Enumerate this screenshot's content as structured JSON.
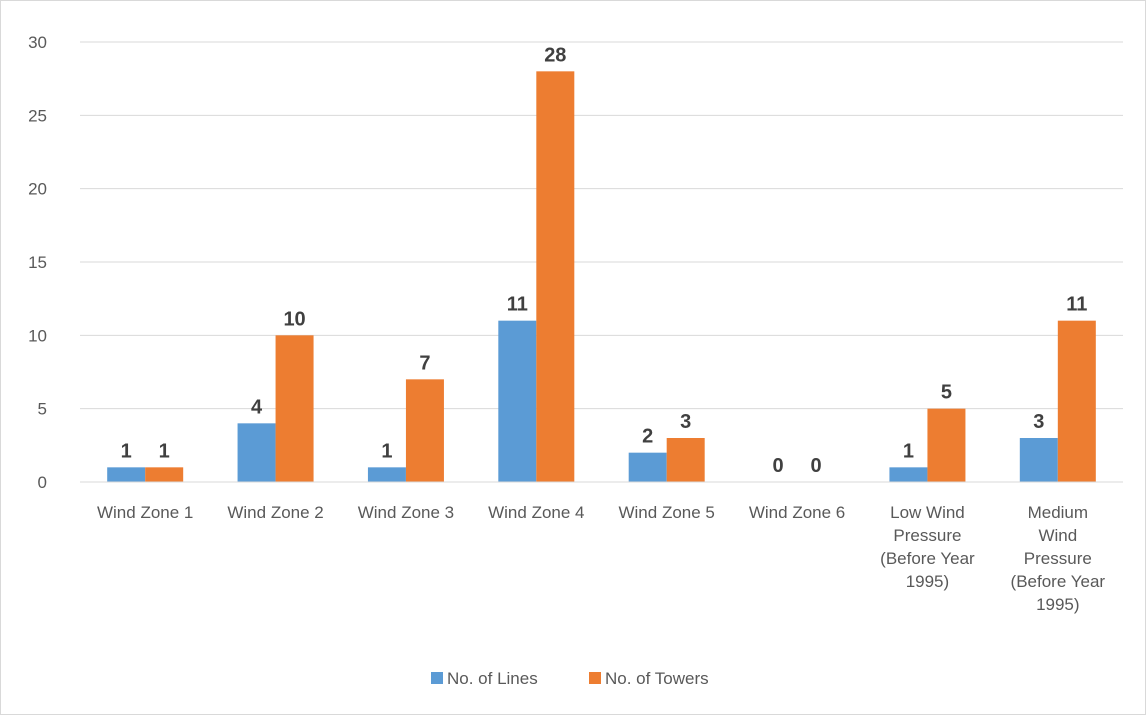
{
  "chart_data": {
    "type": "bar",
    "title": "",
    "xlabel": "",
    "ylabel": "",
    "ylim": [
      0,
      30
    ],
    "yticks": [
      0,
      5,
      10,
      15,
      20,
      25,
      30
    ],
    "grid": true,
    "legend_position": "bottom",
    "categories": [
      [
        "Wind Zone 1"
      ],
      [
        "Wind Zone 2"
      ],
      [
        "Wind Zone 3"
      ],
      [
        "Wind Zone 4"
      ],
      [
        "Wind Zone 5"
      ],
      [
        "Wind Zone 6"
      ],
      [
        "Low Wind",
        "Pressure",
        "(Before Year",
        "1995)"
      ],
      [
        "Medium",
        "Wind",
        "Pressure",
        "(Before Year",
        "1995)"
      ]
    ],
    "series": [
      {
        "name": "No. of Lines",
        "color": "#5b9bd5",
        "values": [
          1,
          4,
          1,
          11,
          2,
          0,
          1,
          3
        ]
      },
      {
        "name": "No. of Towers",
        "color": "#ed7d31",
        "values": [
          1,
          10,
          7,
          28,
          3,
          0,
          5,
          11
        ]
      }
    ]
  }
}
